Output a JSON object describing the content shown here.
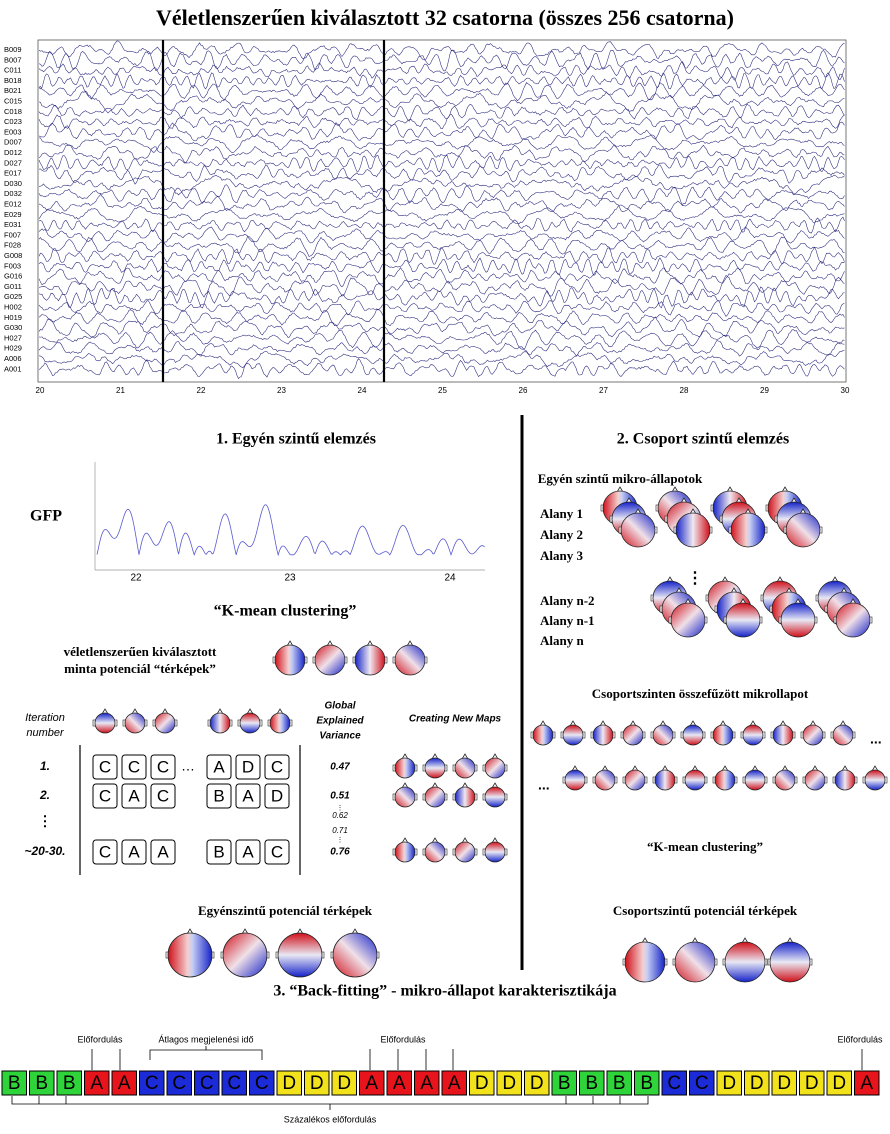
{
  "title": "Véletlenszerűen kiválasztott 32 csatorna (összes 256 csatorna)",
  "eeg": {
    "channels": [
      "B009",
      "B007",
      "C011",
      "B018",
      "B021",
      "C015",
      "C018",
      "C023",
      "E003",
      "D007",
      "D012",
      "D027",
      "E017",
      "D030",
      "D032",
      "E012",
      "E029",
      "E031",
      "F007",
      "F028",
      "G008",
      "F003",
      "G016",
      "G011",
      "G025",
      "H002",
      "H019",
      "G030",
      "H027",
      "H029",
      "A006",
      "A001"
    ],
    "time_ticks": [
      20,
      21,
      22,
      23,
      24,
      25,
      26,
      27,
      28,
      29,
      30
    ]
  },
  "section1": {
    "title": "1. Egyén szintű elemzés",
    "gfp_label": "GFP",
    "gfp_ticks": [
      22,
      23,
      24
    ],
    "kmean": "“K-mean clustering”",
    "random_maps_label": [
      "véletlenszerűen kiválasztott",
      "minta potenciál “térképek”"
    ],
    "iteration_header": [
      "Iteration",
      "number"
    ],
    "gev_header": [
      "Global",
      "Explained",
      "Variance"
    ],
    "new_maps_header": "Creating New Maps",
    "ellipsis": "…",
    "vdots": "⋮",
    "rows": [
      {
        "label": "1.",
        "left": [
          "C",
          "C",
          "C"
        ],
        "right": [
          "A",
          "D",
          "C"
        ],
        "gev": 0.47
      },
      {
        "label": "2.",
        "left": [
          "C",
          "A",
          "C"
        ],
        "right": [
          "B",
          "A",
          "D"
        ],
        "gev": 0.51
      },
      {
        "label": "~20-30.",
        "left": [
          "C",
          "A",
          "A"
        ],
        "right": [
          "B",
          "A",
          "C"
        ],
        "gev": 0.76
      }
    ],
    "gev_mid": [
      0.62,
      0.71
    ],
    "result": "Egyénszintű potenciál térképek"
  },
  "section2": {
    "title": "2. Csoport szintű elemzés",
    "subtitle": "Egyén szintű mikro-állapotok",
    "subjects_top": [
      "Alany 1",
      "Alany 2",
      "Alany 3"
    ],
    "subjects_bottom": [
      "Alany n-2",
      "Alany n-1",
      "Alany n"
    ],
    "concat": "Csoportszinten összefűzött mikrollapot",
    "ellipsis": "...",
    "kmean": "“K-mean clustering”",
    "result": "Csoportszintű potenciál térképek"
  },
  "section3": {
    "title": "3. “Back-fitting” - mikro-állapot karakterisztikája",
    "occurrence": "Előfordulás",
    "mean_duration": "Átlagos megjelenési idő",
    "percent": "Százalékos előfordulás",
    "sequence": [
      "B",
      "B",
      "B",
      "A",
      "A",
      "C",
      "C",
      "C",
      "C",
      "C",
      "D",
      "D",
      "D",
      "A",
      "A",
      "A",
      "A",
      "D",
      "D",
      "D",
      "B",
      "B",
      "B",
      "B",
      "C",
      "C",
      "D",
      "D",
      "D",
      "D",
      "D",
      "A"
    ],
    "colors": {
      "A": "#e8141c",
      "B": "#2fd43a",
      "C": "#1c2bd8",
      "D": "#f2e21c"
    }
  }
}
